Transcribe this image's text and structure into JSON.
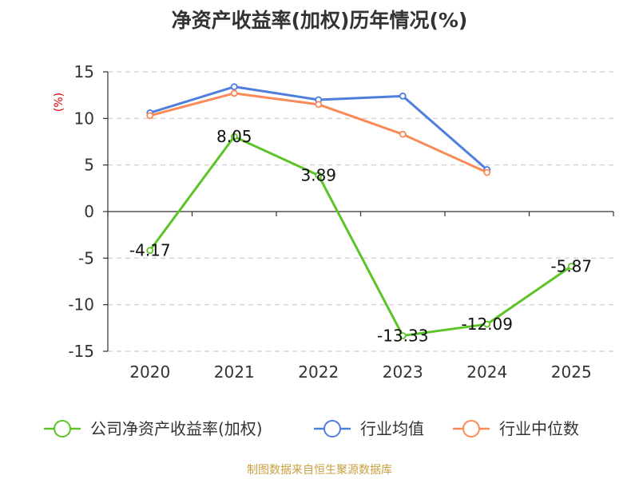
{
  "chart_data": {
    "type": "line",
    "title": "净资产收益率(加权)历年情况(%)",
    "ylabel": "(%)",
    "xlabel": "",
    "categories": [
      "2020",
      "2021",
      "2022",
      "2023",
      "2024",
      "2025"
    ],
    "ylim": [
      -15,
      15
    ],
    "yticks": [
      15,
      10,
      5,
      0,
      -5,
      -10,
      -15
    ],
    "grid": true,
    "legend_position": "bottom",
    "series": [
      {
        "name": "公司净资产收益率(加权)",
        "color": "#5cc426",
        "values": [
          -4.17,
          8.05,
          3.89,
          -13.33,
          -12.09,
          -5.87
        ],
        "labels": [
          "-4.17",
          "8.05",
          "3.89",
          "-13.33",
          "-12.09",
          "-5.87"
        ]
      },
      {
        "name": "行业均值",
        "color": "#4f7fdc",
        "values": [
          10.6,
          13.4,
          12.0,
          12.4,
          4.5,
          null
        ]
      },
      {
        "name": "行业中位数",
        "color": "#fa8a57",
        "values": [
          10.3,
          12.7,
          11.5,
          8.3,
          4.2,
          null
        ]
      }
    ],
    "source": "制图数据来自恒生聚源数据库"
  }
}
